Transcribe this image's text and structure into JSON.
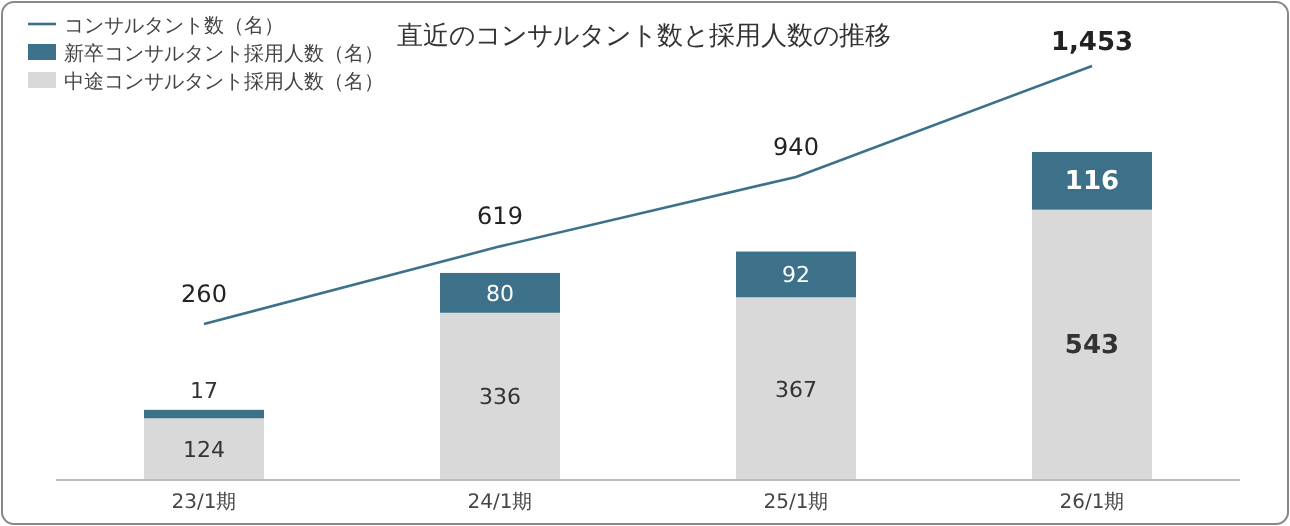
{
  "chart_data": {
    "type": "bar",
    "title": "直近のコンサルタント数と採用人数の推移",
    "categories": [
      "23/1期",
      "24/1期",
      "25/1期",
      "26/1期"
    ],
    "stacked": true,
    "data_labels": true,
    "legend": "top left",
    "series": [
      {
        "name": "中途コンサルタント採用人数（名）",
        "color": "#d9d9d9",
        "values": [
          124,
          336,
          367,
          543
        ]
      },
      {
        "name": "新卒コンサルタント採用人数（名）",
        "color": "#3d7189",
        "values": [
          17,
          80,
          92,
          116
        ]
      },
      {
        "name": "コンサルタント数（名）",
        "type": "line",
        "axis": "y2",
        "color": "#3d7189",
        "values": [
          260,
          619,
          940,
          1453
        ],
        "value_labels": [
          "260",
          "619",
          "940",
          "1,453"
        ]
      }
    ]
  }
}
